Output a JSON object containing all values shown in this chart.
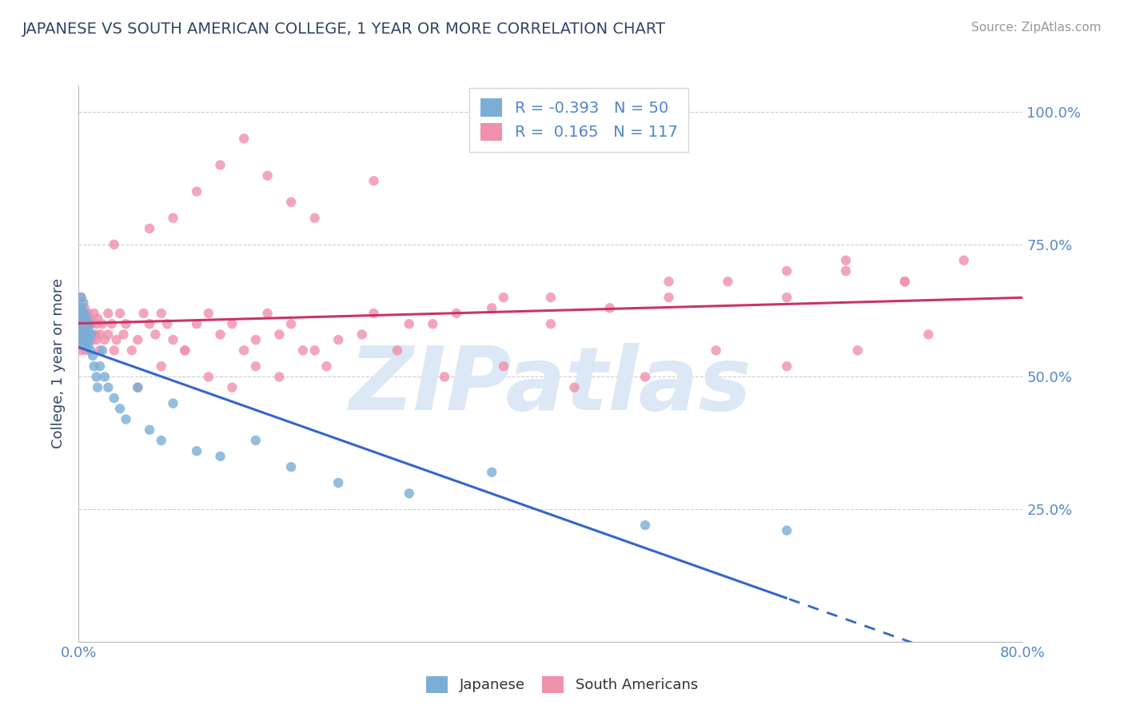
{
  "title": "JAPANESE VS SOUTH AMERICAN COLLEGE, 1 YEAR OR MORE CORRELATION CHART",
  "source_text": "Source: ZipAtlas.com",
  "ylabel": "College, 1 year or more",
  "xlim": [
    0.0,
    0.8
  ],
  "ylim": [
    0.0,
    1.05
  ],
  "xticks": [
    0.0,
    0.1,
    0.2,
    0.3,
    0.4,
    0.5,
    0.6,
    0.7,
    0.8
  ],
  "xticklabels": [
    "0.0%",
    "",
    "",
    "",
    "",
    "",
    "",
    "",
    "80.0%"
  ],
  "yticks": [
    0.0,
    0.25,
    0.5,
    0.75,
    1.0
  ],
  "yticklabels_left": [
    "",
    "",
    "",
    "",
    ""
  ],
  "yticklabels_right": [
    "",
    "25.0%",
    "50.0%",
    "75.0%",
    "100.0%"
  ],
  "legend_entries": [
    {
      "label_r": "R = -0.393",
      "label_n": "N = 50",
      "color": "#aac4e0"
    },
    {
      "label_r": "R =  0.165",
      "label_n": "N = 117",
      "color": "#f4b8c8"
    }
  ],
  "watermark": "ZIPatlas",
  "watermark_color": "#dce8f5",
  "blue_color": "#7aaed6",
  "pink_color": "#f090aa",
  "blue_line_color": "#3366cc",
  "pink_line_color": "#cc3366",
  "grid_color": "#cccccc",
  "axis_label_color": "#5588cc",
  "title_color": "#334466",
  "japanese_x": [
    0.001,
    0.001,
    0.001,
    0.002,
    0.002,
    0.002,
    0.002,
    0.003,
    0.003,
    0.003,
    0.004,
    0.004,
    0.004,
    0.005,
    0.005,
    0.005,
    0.006,
    0.006,
    0.007,
    0.007,
    0.008,
    0.008,
    0.009,
    0.009,
    0.01,
    0.011,
    0.012,
    0.013,
    0.015,
    0.016,
    0.018,
    0.02,
    0.022,
    0.025,
    0.03,
    0.035,
    0.04,
    0.05,
    0.06,
    0.07,
    0.08,
    0.1,
    0.12,
    0.15,
    0.18,
    0.22,
    0.28,
    0.35,
    0.48,
    0.6
  ],
  "japanese_y": [
    0.62,
    0.6,
    0.58,
    0.65,
    0.63,
    0.6,
    0.57,
    0.62,
    0.6,
    0.58,
    0.64,
    0.61,
    0.59,
    0.62,
    0.59,
    0.56,
    0.6,
    0.57,
    0.61,
    0.58,
    0.59,
    0.56,
    0.6,
    0.57,
    0.55,
    0.58,
    0.54,
    0.52,
    0.5,
    0.48,
    0.52,
    0.55,
    0.5,
    0.48,
    0.46,
    0.44,
    0.42,
    0.48,
    0.4,
    0.38,
    0.45,
    0.36,
    0.35,
    0.38,
    0.33,
    0.3,
    0.28,
    0.32,
    0.22,
    0.21
  ],
  "sa_x": [
    0.001,
    0.001,
    0.001,
    0.001,
    0.002,
    0.002,
    0.002,
    0.002,
    0.002,
    0.003,
    0.003,
    0.003,
    0.003,
    0.004,
    0.004,
    0.004,
    0.005,
    0.005,
    0.005,
    0.006,
    0.006,
    0.006,
    0.007,
    0.007,
    0.008,
    0.008,
    0.009,
    0.009,
    0.01,
    0.01,
    0.011,
    0.012,
    0.013,
    0.014,
    0.015,
    0.015,
    0.016,
    0.018,
    0.018,
    0.02,
    0.022,
    0.025,
    0.025,
    0.028,
    0.03,
    0.032,
    0.035,
    0.038,
    0.04,
    0.045,
    0.05,
    0.055,
    0.06,
    0.065,
    0.07,
    0.075,
    0.08,
    0.09,
    0.1,
    0.11,
    0.12,
    0.13,
    0.14,
    0.15,
    0.16,
    0.17,
    0.18,
    0.2,
    0.22,
    0.25,
    0.28,
    0.32,
    0.36,
    0.4,
    0.45,
    0.5,
    0.55,
    0.6,
    0.65,
    0.7,
    0.75,
    0.06,
    0.08,
    0.1,
    0.12,
    0.14,
    0.16,
    0.18,
    0.2,
    0.25,
    0.3,
    0.35,
    0.4,
    0.5,
    0.6,
    0.65,
    0.7,
    0.03,
    0.05,
    0.07,
    0.09,
    0.11,
    0.13,
    0.15,
    0.17,
    0.19,
    0.21,
    0.24,
    0.27,
    0.31,
    0.36,
    0.42,
    0.48,
    0.54,
    0.6,
    0.66,
    0.72
  ],
  "sa_y": [
    0.62,
    0.6,
    0.58,
    0.56,
    0.65,
    0.62,
    0.6,
    0.58,
    0.55,
    0.63,
    0.6,
    0.58,
    0.56,
    0.62,
    0.6,
    0.57,
    0.63,
    0.6,
    0.57,
    0.61,
    0.58,
    0.55,
    0.6,
    0.57,
    0.62,
    0.58,
    0.6,
    0.57,
    0.61,
    0.58,
    0.6,
    0.57,
    0.62,
    0.58,
    0.6,
    0.57,
    0.61,
    0.58,
    0.55,
    0.6,
    0.57,
    0.62,
    0.58,
    0.6,
    0.55,
    0.57,
    0.62,
    0.58,
    0.6,
    0.55,
    0.57,
    0.62,
    0.6,
    0.58,
    0.62,
    0.6,
    0.57,
    0.55,
    0.6,
    0.62,
    0.58,
    0.6,
    0.55,
    0.57,
    0.62,
    0.58,
    0.6,
    0.55,
    0.57,
    0.62,
    0.6,
    0.62,
    0.65,
    0.6,
    0.63,
    0.65,
    0.68,
    0.65,
    0.7,
    0.68,
    0.72,
    0.78,
    0.8,
    0.85,
    0.9,
    0.95,
    0.88,
    0.83,
    0.8,
    0.87,
    0.6,
    0.63,
    0.65,
    0.68,
    0.7,
    0.72,
    0.68,
    0.75,
    0.48,
    0.52,
    0.55,
    0.5,
    0.48,
    0.52,
    0.5,
    0.55,
    0.52,
    0.58,
    0.55,
    0.5,
    0.52,
    0.48,
    0.5,
    0.55,
    0.52,
    0.55,
    0.58
  ]
}
